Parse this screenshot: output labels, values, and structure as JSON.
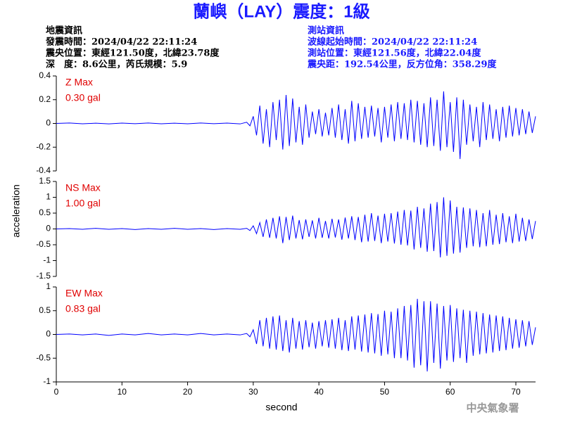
{
  "header": {
    "title": "蘭嶼（LAY）震度：1級",
    "left_info": [
      "地震資訊",
      "發震時間：2024/04/22 22:11:24",
      "震央位置：東經121.50度，北緯23.78度",
      "深　度：8.6公里，芮氏規模：5.9"
    ],
    "right_info": [
      "測站資訊",
      "波線起始時間：2024/04/22 22:11:24",
      "測站位置：東經121.56度，北緯22.04度",
      "震央距：192.54公里，反方位角：358.29度"
    ],
    "y_label": "acceleration",
    "footer": "中央氣象署"
  },
  "chart_data": [
    {
      "type": "line",
      "annotations": [
        "Z Max",
        "0.30 gal"
      ],
      "annotation_color": "#e00000",
      "ylim": [
        -0.4,
        0.4
      ],
      "yticks": [
        0.4,
        0.2,
        0,
        -0.2,
        -0.4
      ],
      "xlim": [
        0,
        73
      ],
      "x": [
        0,
        2,
        4,
        6,
        8,
        10,
        12,
        14,
        16,
        18,
        20,
        22,
        24,
        26,
        28,
        29,
        29.5,
        30,
        30.5,
        31,
        31.5,
        32,
        32.5,
        33,
        33.5,
        34,
        34.5,
        35,
        35.5,
        36,
        36.5,
        37,
        37.5,
        38,
        38.5,
        39,
        39.5,
        40,
        40.5,
        41,
        41.5,
        42,
        42.5,
        43,
        43.5,
        44,
        44.5,
        45,
        45.5,
        46,
        46.5,
        47,
        47.5,
        48,
        48.5,
        49,
        49.5,
        50,
        50.5,
        51,
        51.5,
        52,
        52.5,
        53,
        53.5,
        54,
        54.5,
        55,
        55.5,
        56,
        56.5,
        57,
        57.5,
        58,
        58.5,
        59,
        59.5,
        60,
        60.5,
        61,
        61.5,
        62,
        62.5,
        63,
        63.5,
        64,
        64.5,
        65,
        65.5,
        66,
        66.5,
        67,
        67.5,
        68,
        68.5,
        69,
        69.5,
        70,
        70.5,
        71,
        71.5,
        72,
        72.5,
        73
      ],
      "series": [
        {
          "color": "#0000ff",
          "values": [
            0,
            0.004,
            -0.003,
            0.002,
            -0.004,
            0.003,
            -0.002,
            0.004,
            -0.003,
            0.002,
            -0.003,
            0.004,
            -0.002,
            0.003,
            -0.004,
            0.01,
            -0.02,
            0.06,
            -0.1,
            0.15,
            -0.17,
            0.12,
            -0.2,
            0.18,
            -0.14,
            0.2,
            -0.22,
            0.24,
            -0.19,
            0.21,
            -0.16,
            0.14,
            -0.18,
            0.16,
            -0.12,
            0.1,
            -0.09,
            0.12,
            -0.11,
            0.09,
            -0.1,
            0.13,
            -0.12,
            0.16,
            -0.14,
            0.12,
            -0.17,
            0.19,
            -0.15,
            0.17,
            -0.13,
            0.14,
            -0.12,
            0.15,
            -0.11,
            0.13,
            -0.16,
            0.14,
            -0.12,
            0.16,
            -0.15,
            0.18,
            -0.13,
            0.17,
            -0.14,
            0.2,
            -0.16,
            0.19,
            -0.18,
            0.17,
            -0.2,
            0.22,
            -0.19,
            0.2,
            -0.23,
            0.27,
            -0.2,
            0.18,
            -0.24,
            0.22,
            -0.3,
            0.2,
            -0.18,
            0.16,
            -0.15,
            0.14,
            -0.2,
            0.18,
            -0.14,
            0.16,
            -0.13,
            0.12,
            -0.15,
            0.14,
            -0.12,
            0.15,
            -0.11,
            0.13,
            -0.1,
            0.12,
            -0.09,
            0.1,
            -0.08,
            0.06
          ]
        }
      ]
    },
    {
      "type": "line",
      "annotations": [
        "NS Max",
        "1.00 gal"
      ],
      "annotation_color": "#e00000",
      "ylim": [
        -1.5,
        1.5
      ],
      "yticks": [
        1.5,
        1,
        0.5,
        0,
        -0.5,
        -1,
        -1.5
      ],
      "xlim": [
        0,
        73
      ],
      "x": [
        0,
        2,
        4,
        6,
        8,
        10,
        12,
        14,
        16,
        18,
        20,
        22,
        24,
        26,
        28,
        29,
        29.5,
        30,
        30.5,
        31,
        31.5,
        32,
        32.5,
        33,
        33.5,
        34,
        34.5,
        35,
        35.5,
        36,
        36.5,
        37,
        37.5,
        38,
        38.5,
        39,
        39.5,
        40,
        40.5,
        41,
        41.5,
        42,
        42.5,
        43,
        43.5,
        44,
        44.5,
        45,
        45.5,
        46,
        46.5,
        47,
        47.5,
        48,
        48.5,
        49,
        49.5,
        50,
        50.5,
        51,
        51.5,
        52,
        52.5,
        53,
        53.5,
        54,
        54.5,
        55,
        55.5,
        56,
        56.5,
        57,
        57.5,
        58,
        58.5,
        59,
        59.5,
        60,
        60.5,
        61,
        61.5,
        62,
        62.5,
        63,
        63.5,
        64,
        64.5,
        65,
        65.5,
        66,
        66.5,
        67,
        67.5,
        68,
        68.5,
        69,
        69.5,
        70,
        70.5,
        71,
        71.5,
        72,
        72.5,
        73
      ],
      "series": [
        {
          "color": "#0000ff",
          "values": [
            0,
            0.01,
            -0.01,
            0.02,
            -0.01,
            0.01,
            -0.02,
            0.01,
            -0.01,
            0.02,
            -0.01,
            0.01,
            -0.02,
            0.01,
            -0.01,
            0.02,
            -0.05,
            0.1,
            -0.15,
            0.2,
            -0.25,
            0.3,
            -0.28,
            0.35,
            -0.3,
            0.4,
            -0.45,
            0.38,
            -0.35,
            0.42,
            -0.3,
            0.28,
            -0.33,
            0.3,
            -0.25,
            0.27,
            -0.3,
            0.35,
            -0.28,
            0.25,
            -0.3,
            0.32,
            -0.27,
            0.3,
            -0.34,
            0.36,
            -0.3,
            0.4,
            -0.35,
            0.38,
            -0.42,
            0.45,
            -0.4,
            0.5,
            -0.38,
            0.42,
            -0.45,
            0.48,
            -0.4,
            0.5,
            -0.46,
            0.55,
            -0.5,
            0.6,
            -0.52,
            0.58,
            -0.65,
            0.7,
            -0.6,
            0.65,
            -0.72,
            0.8,
            -0.7,
            0.85,
            -0.9,
            1.0,
            -0.85,
            0.9,
            -0.78,
            0.7,
            -0.75,
            0.68,
            -0.6,
            0.65,
            -0.55,
            0.6,
            -0.58,
            0.5,
            -0.55,
            0.6,
            -0.5,
            0.45,
            -0.48,
            0.5,
            -0.42,
            0.4,
            -0.45,
            0.48,
            -0.4,
            0.35,
            -0.38,
            0.3,
            -0.32,
            0.25
          ]
        }
      ]
    },
    {
      "type": "line",
      "annotations": [
        "EW Max",
        "0.83 gal"
      ],
      "annotation_color": "#e00000",
      "ylim": [
        -1,
        1
      ],
      "yticks": [
        1,
        0.5,
        0,
        -0.5,
        -1
      ],
      "xlim": [
        0,
        73
      ],
      "xticks": [
        0,
        10,
        20,
        30,
        40,
        50,
        60,
        70
      ],
      "x_label": "second",
      "x": [
        0,
        2,
        4,
        6,
        8,
        10,
        12,
        14,
        16,
        18,
        20,
        22,
        24,
        26,
        28,
        29,
        29.5,
        30,
        30.5,
        31,
        31.5,
        32,
        32.5,
        33,
        33.5,
        34,
        34.5,
        35,
        35.5,
        36,
        36.5,
        37,
        37.5,
        38,
        38.5,
        39,
        39.5,
        40,
        40.5,
        41,
        41.5,
        42,
        42.5,
        43,
        43.5,
        44,
        44.5,
        45,
        45.5,
        46,
        46.5,
        47,
        47.5,
        48,
        48.5,
        49,
        49.5,
        50,
        50.5,
        51,
        51.5,
        52,
        52.5,
        53,
        53.5,
        54,
        54.5,
        55,
        55.5,
        56,
        56.5,
        57,
        57.5,
        58,
        58.5,
        59,
        59.5,
        60,
        60.5,
        61,
        61.5,
        62,
        62.5,
        63,
        63.5,
        64,
        64.5,
        65,
        65.5,
        66,
        66.5,
        67,
        67.5,
        68,
        68.5,
        69,
        69.5,
        70,
        70.5,
        71,
        71.5,
        72,
        72.5,
        73
      ],
      "series": [
        {
          "color": "#0000ff",
          "values": [
            0,
            0.01,
            -0.01,
            0.01,
            -0.02,
            0.01,
            -0.01,
            0.02,
            -0.01,
            0.01,
            -0.01,
            0.02,
            -0.01,
            0.01,
            -0.01,
            0.02,
            -0.05,
            0.1,
            -0.2,
            0.3,
            -0.25,
            0.35,
            -0.3,
            0.38,
            -0.32,
            0.4,
            -0.35,
            0.3,
            -0.38,
            0.35,
            -0.3,
            0.28,
            -0.32,
            0.3,
            -0.27,
            0.25,
            -0.3,
            0.28,
            -0.25,
            0.3,
            -0.28,
            0.32,
            -0.3,
            0.35,
            -0.33,
            0.3,
            -0.35,
            0.38,
            -0.32,
            0.4,
            -0.36,
            0.42,
            -0.38,
            0.45,
            -0.4,
            0.43,
            -0.45,
            0.5,
            -0.42,
            0.48,
            -0.5,
            0.55,
            -0.5,
            0.6,
            -0.55,
            0.62,
            -0.7,
            0.75,
            -0.65,
            0.7,
            -0.78,
            0.7,
            -0.6,
            0.65,
            -0.72,
            0.6,
            -0.55,
            0.62,
            -0.58,
            0.55,
            -0.5,
            0.52,
            -0.6,
            0.5,
            -0.45,
            0.48,
            -0.42,
            0.45,
            -0.4,
            0.42,
            -0.38,
            0.4,
            -0.35,
            0.38,
            -0.33,
            0.35,
            -0.3,
            0.32,
            -0.28,
            0.3,
            -0.25,
            0.28,
            -0.22,
            0.15
          ]
        }
      ]
    }
  ]
}
